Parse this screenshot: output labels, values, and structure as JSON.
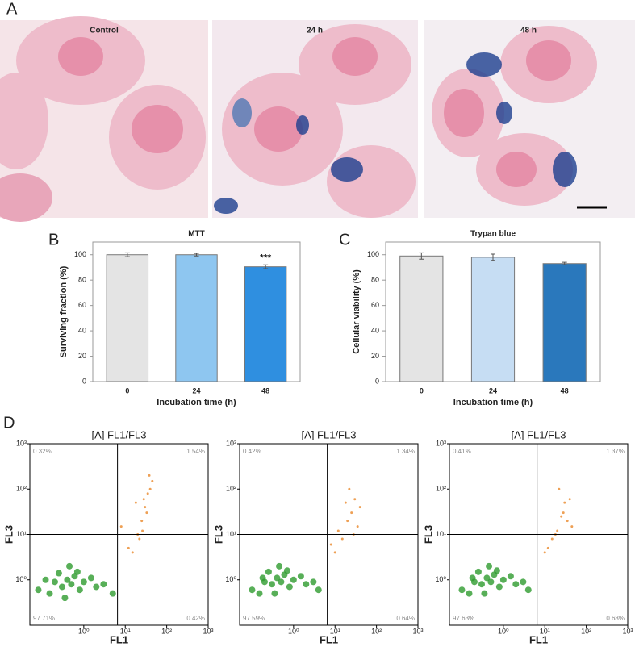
{
  "figure": {
    "panel_labels": [
      "A",
      "B",
      "C",
      "D"
    ],
    "images": [
      {
        "label": "Control"
      },
      {
        "label": "24 h"
      },
      {
        "label": "48 h"
      }
    ]
  },
  "chart_data": [
    {
      "type": "bar",
      "title": "MTT",
      "x_label": "Incubation time (h)",
      "y_label": "Surviving fraction (%)",
      "categories": [
        "0",
        "24",
        "48"
      ],
      "values": [
        100,
        100,
        90.5
      ],
      "errors": [
        1.5,
        1,
        1.5
      ],
      "colors": [
        "#e4e4e4",
        "#8ec6f0",
        "#2f8fe0"
      ],
      "annotations": [
        {
          "category": "48",
          "text": "***"
        }
      ],
      "ylim": [
        0,
        110
      ],
      "yticks": [
        0,
        20,
        40,
        60,
        80,
        100
      ]
    },
    {
      "type": "bar",
      "title": "Trypan blue",
      "x_label": "Incubation time (h)",
      "y_label": "Cellular viability (%)",
      "categories": [
        "0",
        "24",
        "48"
      ],
      "values": [
        99,
        98,
        93
      ],
      "errors": [
        2.5,
        2.5,
        1
      ],
      "colors": [
        "#e4e4e4",
        "#c6ddf3",
        "#2a78bc"
      ],
      "annotations": [],
      "ylim": [
        0,
        110
      ],
      "yticks": [
        0,
        20,
        40,
        60,
        80,
        100
      ]
    },
    {
      "type": "scatter",
      "title": "[A] FL1/FL3",
      "x_label": "FL1",
      "y_label": "FL3",
      "log_x": true,
      "log_y": true,
      "xlim": [
        0.05,
        1000
      ],
      "ylim": [
        0.1,
        1000
      ],
      "xticks": [
        {
          "value": 1,
          "label": "10⁰"
        },
        {
          "value": 10,
          "label": "10¹"
        },
        {
          "value": 100,
          "label": "10²"
        },
        {
          "value": 1000,
          "label": "10³"
        }
      ],
      "yticks": [
        {
          "value": 1,
          "label": "10⁰"
        },
        {
          "value": 10,
          "label": "10¹"
        },
        {
          "value": 100,
          "label": "10²"
        },
        {
          "value": 1000,
          "label": "10³"
        }
      ],
      "quadrant_x": 6.5,
      "quadrant_y": 10,
      "quadrants": [
        "0.32%",
        "1.54%",
        "97.71%",
        "0.42%"
      ],
      "series": [
        {
          "color": "#2e9b2e",
          "x": [
            0.08,
            0.15,
            0.2,
            0.3,
            0.4,
            0.5,
            0.6,
            0.8,
            1.0,
            1.5,
            2,
            3,
            0.25,
            0.35,
            0.7,
            5,
            0.12,
            0.45
          ],
          "y": [
            0.6,
            0.5,
            0.9,
            0.7,
            1.0,
            0.8,
            1.2,
            0.6,
            0.9,
            1.1,
            0.7,
            0.8,
            1.4,
            0.4,
            1.5,
            0.5,
            1.0,
            2.0
          ]
        },
        {
          "color": "#eea055",
          "x": [
            12,
            20,
            25,
            30,
            35,
            40,
            28,
            22,
            45,
            33,
            15,
            8,
            18,
            38,
            26
          ],
          "y": [
            5,
            10,
            20,
            40,
            80,
            100,
            60,
            8,
            150,
            30,
            4,
            15,
            50,
            200,
            12
          ]
        }
      ]
    },
    {
      "type": "scatter",
      "title": "[A] FL1/FL3",
      "x_label": "FL1",
      "y_label": "FL3",
      "log_x": true,
      "log_y": true,
      "xlim": [
        0.05,
        1000
      ],
      "ylim": [
        0.1,
        1000
      ],
      "xticks": [
        {
          "value": 1,
          "label": "10⁰"
        },
        {
          "value": 10,
          "label": "10¹"
        },
        {
          "value": 100,
          "label": "10²"
        },
        {
          "value": 1000,
          "label": "10³"
        }
      ],
      "yticks": [
        {
          "value": 1,
          "label": "10⁰"
        },
        {
          "value": 10,
          "label": "10¹"
        },
        {
          "value": 100,
          "label": "10²"
        },
        {
          "value": 1000,
          "label": "10³"
        }
      ],
      "quadrant_x": 6.5,
      "quadrant_y": 10,
      "quadrants": [
        "0.42%",
        "1.34%",
        "97.59%",
        "0.64%"
      ],
      "series": [
        {
          "color": "#2e9b2e",
          "x": [
            0.1,
            0.15,
            0.2,
            0.3,
            0.4,
            0.5,
            0.6,
            0.8,
            1.0,
            1.5,
            2,
            3,
            0.25,
            0.35,
            0.7,
            4,
            0.18,
            0.45
          ],
          "y": [
            0.6,
            0.5,
            0.9,
            0.8,
            1.1,
            0.9,
            1.3,
            0.7,
            1.0,
            1.2,
            0.8,
            0.9,
            1.5,
            0.5,
            1.6,
            0.6,
            1.1,
            2.0
          ]
        },
        {
          "color": "#eea055",
          "x": [
            10,
            15,
            20,
            25,
            30,
            12,
            22,
            35,
            40,
            8,
            18,
            28
          ],
          "y": [
            4,
            8,
            20,
            30,
            60,
            12,
            100,
            15,
            40,
            6,
            50,
            10
          ]
        }
      ]
    },
    {
      "type": "scatter",
      "title": "[A] FL1/FL3",
      "x_label": "FL1",
      "y_label": "FL3",
      "log_x": true,
      "log_y": true,
      "xlim": [
        0.05,
        1000
      ],
      "ylim": [
        0.1,
        1000
      ],
      "xticks": [
        {
          "value": 1,
          "label": "10⁰"
        },
        {
          "value": 10,
          "label": "10¹"
        },
        {
          "value": 100,
          "label": "10²"
        },
        {
          "value": 1000,
          "label": "10³"
        }
      ],
      "yticks": [
        {
          "value": 1,
          "label": "10⁰"
        },
        {
          "value": 10,
          "label": "10¹"
        },
        {
          "value": 100,
          "label": "10²"
        },
        {
          "value": 1000,
          "label": "10³"
        }
      ],
      "quadrant_x": 6.5,
      "quadrant_y": 10,
      "quadrants": [
        "0.41%",
        "1.37%",
        "97.63%",
        "0.68%"
      ],
      "series": [
        {
          "color": "#2e9b2e",
          "x": [
            0.1,
            0.15,
            0.2,
            0.3,
            0.4,
            0.5,
            0.6,
            0.8,
            1.0,
            1.5,
            2,
            3,
            0.25,
            0.35,
            0.7,
            4,
            0.18,
            0.45
          ],
          "y": [
            0.6,
            0.5,
            0.9,
            0.8,
            1.1,
            0.9,
            1.3,
            0.7,
            1.0,
            1.2,
            0.8,
            0.9,
            1.5,
            0.5,
            1.6,
            0.6,
            1.1,
            2.0
          ]
        },
        {
          "color": "#eea055",
          "x": [
            12,
            18,
            25,
            30,
            40,
            15,
            22,
            35,
            10,
            28,
            45,
            20
          ],
          "y": [
            5,
            10,
            25,
            50,
            60,
            8,
            100,
            20,
            4,
            30,
            15,
            12
          ]
        }
      ]
    }
  ]
}
